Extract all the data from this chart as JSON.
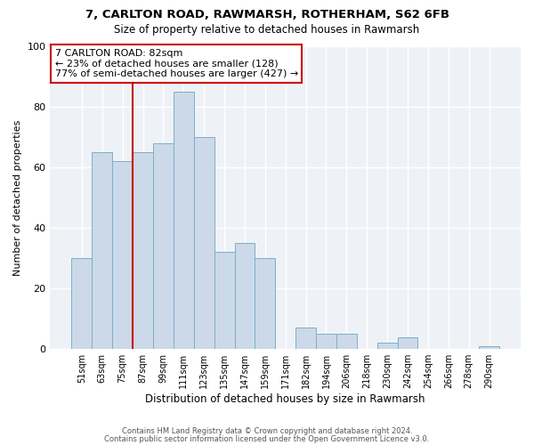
{
  "title1": "7, CARLTON ROAD, RAWMARSH, ROTHERHAM, S62 6FB",
  "title2": "Size of property relative to detached houses in Rawmarsh",
  "xlabel": "Distribution of detached houses by size in Rawmarsh",
  "ylabel": "Number of detached properties",
  "bar_labels": [
    "51sqm",
    "63sqm",
    "75sqm",
    "87sqm",
    "99sqm",
    "111sqm",
    "123sqm",
    "135sqm",
    "147sqm",
    "159sqm",
    "171sqm",
    "182sqm",
    "194sqm",
    "206sqm",
    "218sqm",
    "230sqm",
    "242sqm",
    "254sqm",
    "266sqm",
    "278sqm",
    "290sqm"
  ],
  "bar_heights": [
    30,
    65,
    62,
    65,
    68,
    85,
    70,
    32,
    35,
    30,
    0,
    7,
    5,
    5,
    0,
    2,
    4,
    0,
    0,
    0,
    1
  ],
  "bar_color": "#ccd9e8",
  "bar_edgecolor": "#7faec8",
  "vline_color": "#cc0000",
  "annotation_title": "7 CARLTON ROAD: 82sqm",
  "annotation_line1": "← 23% of detached houses are smaller (128)",
  "annotation_line2": "77% of semi-detached houses are larger (427) →",
  "annotation_box_color": "#ffffff",
  "annotation_border_color": "#cc0000",
  "ylim": [
    0,
    100
  ],
  "footnote1": "Contains HM Land Registry data © Crown copyright and database right 2024.",
  "footnote2": "Contains public sector information licensed under the Open Government Licence v3.0.",
  "background_color": "#eef2f7"
}
